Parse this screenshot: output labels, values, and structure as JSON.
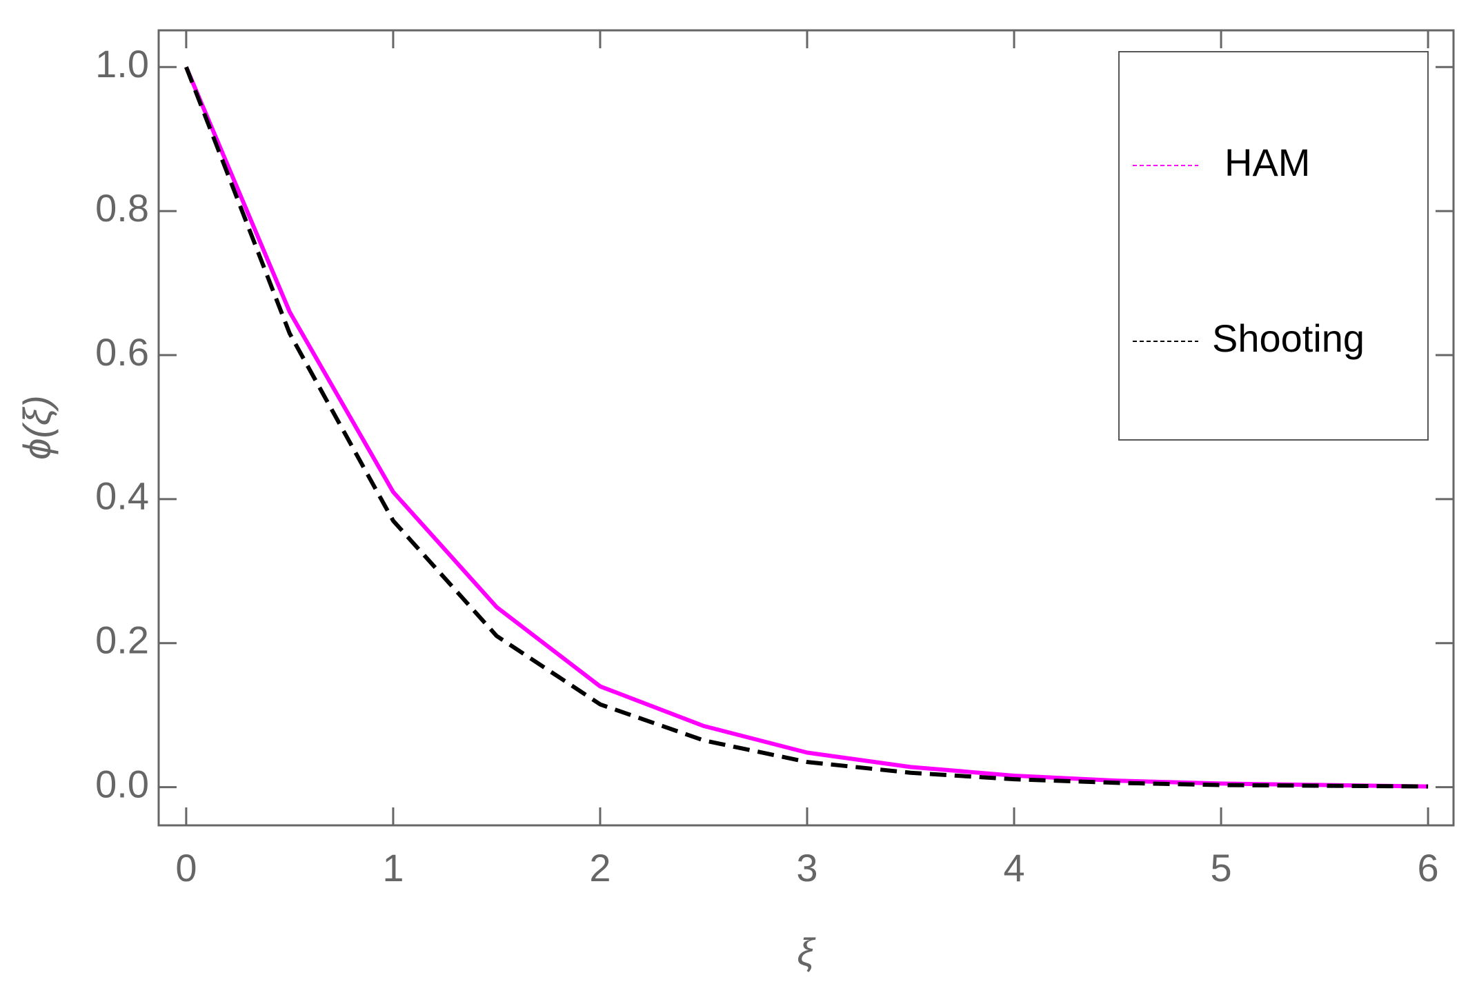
{
  "chart_data": {
    "type": "line",
    "x_label": "ξ",
    "y_label": "ϕ(ξ)",
    "x": [
      0,
      0.5,
      1,
      1.5,
      2,
      2.5,
      3,
      3.5,
      4,
      4.5,
      5,
      5.5,
      6
    ],
    "series": [
      {
        "name": "HAM",
        "color": "#ff00ff",
        "dashed": false,
        "values": [
          1,
          0.66,
          0.41,
          0.25,
          0.14,
          0.085,
          0.048,
          0.028,
          0.016,
          0.009,
          0.005,
          0.003,
          0.001
        ]
      },
      {
        "name": "Shooting",
        "color": "#000000",
        "dashed": true,
        "values": [
          1,
          0.63,
          0.37,
          0.21,
          0.115,
          0.065,
          0.035,
          0.02,
          0.011,
          0.006,
          0.003,
          0.002,
          0.001
        ]
      }
    ],
    "xlim": [
      -0.133,
      6.123
    ],
    "ylim": [
      -0.053,
      1.051
    ],
    "xticks": [
      0,
      1,
      2,
      3,
      4,
      5,
      6
    ],
    "yticks": [
      {
        "value": 0,
        "label": "0.0"
      },
      {
        "value": 0.2,
        "label": "0.2"
      },
      {
        "value": 0.4,
        "label": "0.4"
      },
      {
        "value": 0.6,
        "label": "0.6"
      },
      {
        "value": 0.8,
        "label": "0.8"
      },
      {
        "value": 1,
        "label": "1.0"
      }
    ],
    "legend": "top-right",
    "grid": false
  }
}
